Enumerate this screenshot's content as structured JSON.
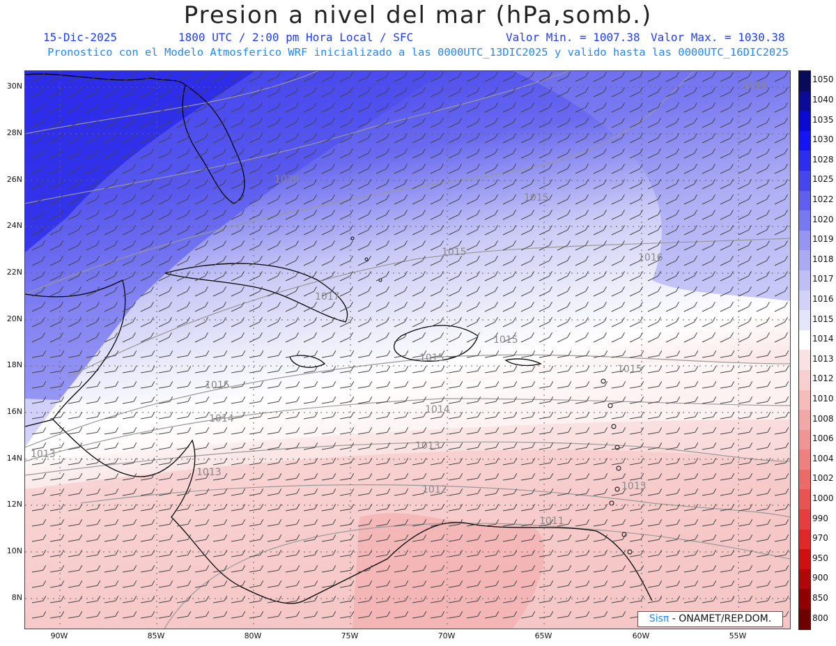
{
  "header": {
    "title": "Presion a nivel del mar (hPa,somb.)",
    "date": "15-Dic-2025",
    "time": "1800 UTC / 2:00 pm Hora Local / SFC",
    "min": "Valor Min. = 1007.38",
    "max": "Valor Max. = 1030.38",
    "model": "Pronostico con el Modelo Atmosferico WRF inicializado a las 0000UTC_13DIC2025 y valido hasta las  0000UTC_16DIC2025"
  },
  "lat_labels": [
    "30N",
    "28N",
    "26N",
    "24N",
    "22N",
    "20N",
    "18N",
    "16N",
    "14N",
    "12N",
    "10N",
    "8N"
  ],
  "lon_labels": [
    "90W",
    "85W",
    "80W",
    "75W",
    "70W",
    "65W",
    "60W",
    "55W"
  ],
  "contour_labels": [
    "1016",
    "1020",
    "1015",
    "1015",
    "1016",
    "1017",
    "1015",
    "1015",
    "1015",
    "1015",
    "1014",
    "1014",
    "1013",
    "1013",
    "1013",
    "1012",
    "1011",
    "1013",
    "1013"
  ],
  "colorbar": {
    "labels": [
      "1050",
      "1040",
      "1035",
      "1030",
      "1028",
      "1025",
      "1022",
      "1020",
      "1019",
      "1018",
      "1017",
      "1016",
      "1015",
      "1014",
      "1013",
      "1012",
      "1010",
      "1008",
      "1006",
      "1004",
      "1002",
      "1000",
      "990",
      "970",
      "950",
      "900",
      "850",
      "800"
    ],
    "colors": [
      "#0a0a5a",
      "#0b0b96",
      "#0a0ad2",
      "#1414f5",
      "#2d2df0",
      "#4646ee",
      "#5f5fee",
      "#7878f0",
      "#9696f2",
      "#aaaaf4",
      "#bfbff6",
      "#d2d2f8",
      "#e4e4fa",
      "#ffffff",
      "#fbe2e2",
      "#f8cfcf",
      "#f6bcbc",
      "#f3a8a8",
      "#f09494",
      "#ee8080",
      "#eb6a6a",
      "#e85454",
      "#e53e3e",
      "#e02828",
      "#d01010",
      "#b00808",
      "#900000",
      "#6e0000"
    ]
  },
  "credit": {
    "sis": "Sisπ",
    "rest": " - ONAMET/REP.DOM."
  }
}
